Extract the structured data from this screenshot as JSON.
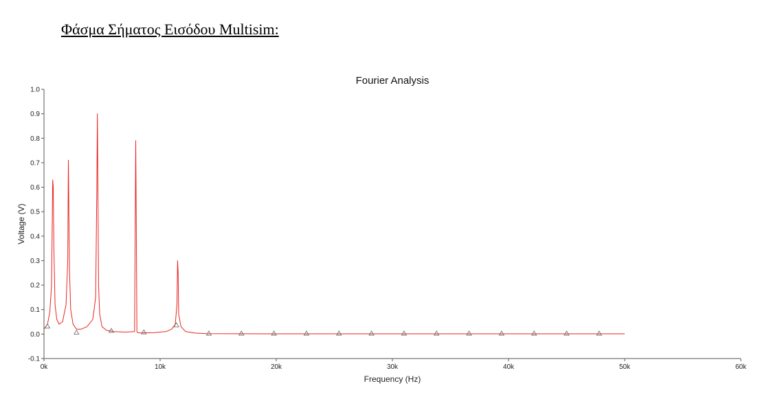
{
  "page": {
    "heading": "Φάσμα Σήματος Εισόδου Multisim:"
  },
  "chart_data": {
    "type": "line",
    "title": "Fourier Analysis",
    "xlabel": "Frequency (Hz)",
    "ylabel": "Voltage (V)",
    "xlim": [
      0,
      60000
    ],
    "ylim": [
      -0.1,
      1.0
    ],
    "x_ticks": [
      0,
      10000,
      20000,
      30000,
      40000,
      50000,
      60000
    ],
    "x_tick_labels": [
      "0k",
      "10k",
      "20k",
      "30k",
      "40k",
      "50k",
      "60k"
    ],
    "y_ticks": [
      -0.1,
      0.0,
      0.1,
      0.2,
      0.3,
      0.4,
      0.5,
      0.6,
      0.7,
      0.8,
      0.9,
      1.0
    ],
    "y_tick_labels": [
      "-0.1",
      "0.0",
      "0.1",
      "0.2",
      "0.3",
      "0.4",
      "0.5",
      "0.6",
      "0.7",
      "0.8",
      "0.9",
      "1.0"
    ],
    "grid": false,
    "series": [
      {
        "color": "#e8231e",
        "marker_color": "#707070",
        "x": [
          0,
          300,
          500,
          650,
          750,
          800,
          850,
          950,
          1100,
          1300,
          1600,
          1900,
          2050,
          2100,
          2150,
          2200,
          2300,
          2500,
          2800,
          3200,
          3700,
          4200,
          4450,
          4550,
          4600,
          4650,
          4700,
          4800,
          5000,
          5400,
          6000,
          7000,
          7800,
          7900,
          7950,
          8000,
          8100,
          8500,
          9500,
          10500,
          11000,
          11300,
          11450,
          11500,
          11550,
          11600,
          11800,
          12200,
          13000,
          14000,
          20000,
          30000,
          40000,
          50000
        ],
        "y": [
          0.02,
          0.04,
          0.09,
          0.2,
          0.63,
          0.6,
          0.35,
          0.12,
          0.06,
          0.04,
          0.05,
          0.12,
          0.3,
          0.71,
          0.48,
          0.25,
          0.1,
          0.04,
          0.02,
          0.02,
          0.03,
          0.06,
          0.15,
          0.6,
          0.9,
          0.55,
          0.2,
          0.08,
          0.03,
          0.015,
          0.01,
          0.008,
          0.01,
          0.79,
          0.4,
          0.01,
          0.005,
          0.005,
          0.006,
          0.01,
          0.02,
          0.04,
          0.12,
          0.3,
          0.25,
          0.08,
          0.03,
          0.01,
          0.004,
          0.002,
          0.001,
          0.001,
          0.001,
          0.001
        ],
        "marker_x": [
          300,
          2800,
          5800,
          8600,
          11400,
          14200,
          17000,
          19800,
          22600,
          25400,
          28200,
          31000,
          33800,
          36600,
          39400,
          42200,
          45000,
          47800
        ],
        "marker_y": [
          0.03,
          0.005,
          0.012,
          0.006,
          0.035,
          0.001,
          0.001,
          0.001,
          0.001,
          0.001,
          0.001,
          0.001,
          0.001,
          0.001,
          0.001,
          0.001,
          0.001,
          0.001
        ]
      }
    ]
  }
}
